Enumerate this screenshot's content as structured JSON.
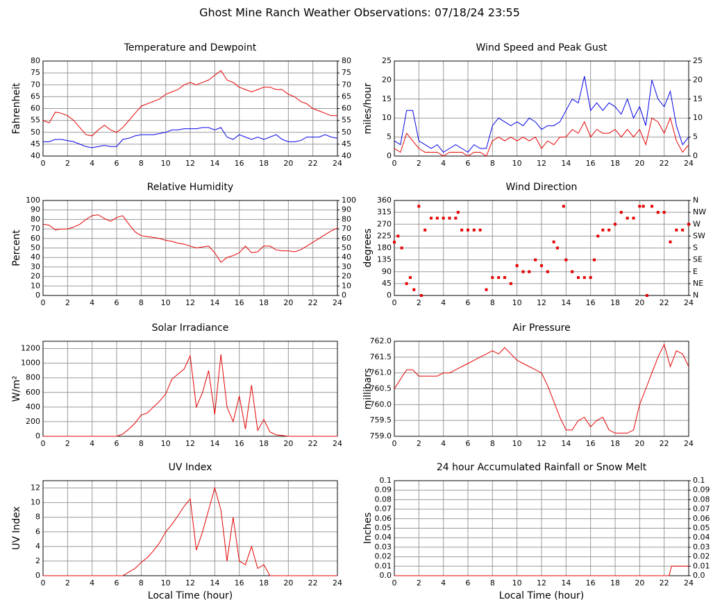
{
  "title": "Ghost Mine Ranch Weather Observations: 07/18/24 23:55",
  "chart_data": [
    {
      "type": "line",
      "title": "Temperature and Dewpoint",
      "ylabel": "Fahrenheit",
      "x": [
        0,
        0.5,
        1,
        1.5,
        2,
        2.5,
        3,
        3.5,
        4,
        4.5,
        5,
        5.5,
        6,
        6.5,
        7,
        7.5,
        8,
        8.5,
        9,
        9.5,
        10,
        10.5,
        11,
        11.5,
        12,
        12.5,
        13,
        13.5,
        14,
        14.5,
        15,
        15.5,
        16,
        16.5,
        17,
        17.5,
        18,
        18.5,
        19,
        19.5,
        20,
        20.5,
        21,
        21.5,
        22,
        22.5,
        23,
        23.5,
        24
      ],
      "series": [
        {
          "color": "#e60000",
          "values": [
            55,
            54,
            58.5,
            58,
            57,
            55,
            52,
            49,
            48.5,
            51,
            53,
            51,
            50,
            52,
            55,
            58,
            61,
            62,
            63,
            64,
            66,
            67,
            68,
            70,
            71,
            70,
            71,
            72,
            74,
            76,
            72,
            71,
            69,
            68,
            67,
            68,
            69,
            69,
            68,
            68,
            66,
            65,
            63,
            62,
            60,
            59,
            58,
            57,
            57
          ]
        },
        {
          "color": "#0000e6",
          "values": [
            46,
            46,
            47,
            47,
            46.5,
            46,
            45,
            44,
            43.5,
            44,
            44.5,
            44,
            44,
            47,
            47.5,
            48.5,
            49,
            49,
            49,
            49.5,
            50,
            51,
            51,
            51.5,
            51.5,
            51.5,
            52,
            52,
            51,
            52,
            48,
            47,
            49,
            48,
            47,
            48,
            47,
            48,
            49,
            47,
            46,
            46,
            46.5,
            48,
            48,
            48,
            49,
            48,
            47.5
          ]
        }
      ],
      "xlim": [
        0,
        24
      ],
      "xticks": [
        0,
        2,
        4,
        6,
        8,
        10,
        12,
        14,
        16,
        18,
        20,
        22,
        24
      ],
      "ylim": [
        40,
        80
      ],
      "yticks": [
        40,
        45,
        50,
        55,
        60,
        65,
        70,
        75,
        80
      ],
      "y2lim": [
        40,
        80
      ],
      "y2ticks": [
        40,
        45,
        50,
        55,
        60,
        65,
        70,
        75,
        80
      ],
      "grid": true
    },
    {
      "type": "line",
      "title": "Wind Speed and Peak Gust",
      "ylabel": "miles/hour",
      "x": [
        0,
        0.5,
        1,
        1.5,
        2,
        2.5,
        3,
        3.5,
        4,
        4.5,
        5,
        5.5,
        6,
        6.5,
        7,
        7.5,
        8,
        8.5,
        9,
        9.5,
        10,
        10.5,
        11,
        11.5,
        12,
        12.5,
        13,
        13.5,
        14,
        14.5,
        15,
        15.5,
        16,
        16.5,
        17,
        17.5,
        18,
        18.5,
        19,
        19.5,
        20,
        20.5,
        21,
        21.5,
        22,
        22.5,
        23,
        23.5,
        24
      ],
      "series": [
        {
          "color": "#0000e6",
          "values": [
            4,
            3,
            12,
            12,
            4,
            3,
            2,
            3,
            1,
            2,
            3,
            2,
            1,
            3,
            2,
            2,
            8,
            10,
            9,
            8,
            9,
            8,
            10,
            9,
            7,
            8,
            8,
            9,
            12,
            15,
            14,
            21,
            12,
            14,
            12,
            14,
            13,
            11,
            15,
            10,
            13,
            8,
            20,
            15,
            13,
            17,
            8,
            3,
            5
          ]
        },
        {
          "color": "#e60000",
          "values": [
            2,
            1,
            6,
            4,
            2,
            1,
            1,
            1,
            0,
            1,
            1,
            1,
            0,
            1,
            1,
            0,
            4,
            5,
            4,
            5,
            4,
            5,
            4,
            5,
            2,
            4,
            3,
            5,
            5,
            7,
            6,
            9,
            5,
            7,
            6,
            6,
            7,
            5,
            7,
            5,
            7,
            3,
            10,
            9,
            6,
            10,
            4,
            1,
            3
          ]
        }
      ],
      "xlim": [
        0,
        24
      ],
      "xticks": [
        0,
        2,
        4,
        6,
        8,
        10,
        12,
        14,
        16,
        18,
        20,
        22,
        24
      ],
      "ylim": [
        0,
        25
      ],
      "yticks": [
        0,
        5,
        10,
        15,
        20,
        25
      ],
      "y2lim": [
        0,
        25
      ],
      "y2ticks": [
        0,
        5,
        10,
        15,
        20,
        25
      ],
      "grid": true
    },
    {
      "type": "line",
      "title": "Relative Humidity",
      "ylabel": "Percent",
      "x": [
        0,
        0.5,
        1,
        1.5,
        2,
        2.5,
        3,
        3.5,
        4,
        4.5,
        5,
        5.5,
        6,
        6.5,
        7,
        7.5,
        8,
        8.5,
        9,
        9.5,
        10,
        10.5,
        11,
        11.5,
        12,
        12.5,
        13,
        13.5,
        14,
        14.5,
        15,
        15.5,
        16,
        16.5,
        17,
        17.5,
        18,
        18.5,
        19,
        19.5,
        20,
        20.5,
        21,
        21.5,
        22,
        22.5,
        23,
        23.5,
        24
      ],
      "series": [
        {
          "color": "#e60000",
          "values": [
            75,
            74,
            69,
            70,
            70,
            72,
            75,
            80,
            84,
            85,
            81,
            78,
            82,
            84,
            75,
            67,
            63,
            62,
            61,
            60,
            58,
            57,
            55,
            54,
            52,
            50,
            51,
            52,
            45,
            35,
            40,
            42,
            45,
            52,
            45,
            46,
            52,
            52,
            48,
            47,
            47,
            46,
            48,
            52,
            56,
            60,
            64,
            68,
            71
          ]
        }
      ],
      "xlim": [
        0,
        24
      ],
      "xticks": [
        0,
        2,
        4,
        6,
        8,
        10,
        12,
        14,
        16,
        18,
        20,
        22,
        24
      ],
      "ylim": [
        0,
        100
      ],
      "yticks": [
        0,
        10,
        20,
        30,
        40,
        50,
        60,
        70,
        80,
        90,
        100
      ],
      "y2lim": [
        0,
        100
      ],
      "y2ticks": [
        0,
        10,
        20,
        30,
        40,
        50,
        60,
        70,
        80,
        90,
        100
      ],
      "grid": true
    },
    {
      "type": "scatter",
      "title": "Wind Direction",
      "ylabel": "degrees",
      "x": [
        0,
        0.3,
        0.6,
        1,
        1.3,
        1.6,
        2,
        2.2,
        2.5,
        3,
        3.5,
        4,
        4.5,
        5,
        5.2,
        5.5,
        6,
        6.5,
        7,
        7.5,
        8,
        8.5,
        9,
        9.5,
        10,
        10.5,
        11,
        11.5,
        12,
        12.5,
        13,
        13.3,
        13.8,
        14,
        14.5,
        15,
        15.5,
        16,
        16.3,
        16.6,
        17,
        17.5,
        18,
        18.5,
        19,
        19.5,
        20,
        20.3,
        20.6,
        21,
        21.5,
        22,
        22.5,
        23,
        23.5,
        24
      ],
      "series": [
        {
          "color": "#e60000",
          "values": [
            202,
            225,
            180,
            45,
            68,
            22,
            338,
            0,
            248,
            293,
            293,
            293,
            293,
            293,
            315,
            248,
            248,
            248,
            248,
            22,
            68,
            68,
            68,
            45,
            113,
            90,
            90,
            135,
            113,
            90,
            203,
            180,
            338,
            135,
            90,
            68,
            68,
            68,
            135,
            225,
            248,
            248,
            270,
            315,
            293,
            293,
            338,
            338,
            0,
            338,
            315,
            315,
            203,
            248,
            248,
            270
          ]
        }
      ],
      "xlim": [
        0,
        24
      ],
      "xticks": [
        0,
        2,
        4,
        6,
        8,
        10,
        12,
        14,
        16,
        18,
        20,
        22,
        24
      ],
      "ylim": [
        0,
        360
      ],
      "yticks": [
        0,
        45,
        90,
        135,
        180,
        225,
        270,
        315,
        360
      ],
      "y2lim": [
        0,
        360
      ],
      "y2ticks": [
        {
          "value": 0,
          "label": "N"
        },
        {
          "value": 45,
          "label": "NE"
        },
        {
          "value": 90,
          "label": "E"
        },
        {
          "value": 135,
          "label": "SE"
        },
        {
          "value": 180,
          "label": "S"
        },
        {
          "value": 225,
          "label": "SW"
        },
        {
          "value": 270,
          "label": "W"
        },
        {
          "value": 315,
          "label": "NW"
        },
        {
          "value": 360,
          "label": "N"
        }
      ],
      "grid": true
    },
    {
      "type": "line",
      "title": "Solar Irradiance",
      "ylabel": "W/m²",
      "x": [
        0,
        0.5,
        1,
        1.5,
        2,
        2.5,
        3,
        3.5,
        4,
        4.5,
        5,
        5.5,
        6,
        6.5,
        7,
        7.5,
        8,
        8.5,
        9,
        9.5,
        10,
        10.5,
        11,
        11.5,
        12,
        12.5,
        13,
        13.5,
        14,
        14.5,
        15,
        15.5,
        16,
        16.5,
        17,
        17.5,
        18,
        18.5,
        19,
        19.5,
        20,
        20.5,
        21,
        21.5,
        22,
        22.5,
        23,
        23.5,
        24
      ],
      "series": [
        {
          "color": "#e60000",
          "values": [
            0,
            0,
            0,
            0,
            0,
            0,
            0,
            0,
            0,
            0,
            0,
            0,
            0,
            30,
            100,
            180,
            290,
            320,
            400,
            480,
            580,
            780,
            850,
            920,
            1100,
            400,
            600,
            900,
            300,
            1120,
            400,
            200,
            550,
            100,
            700,
            80,
            230,
            60,
            20,
            10,
            0,
            0,
            0,
            0,
            0,
            0,
            0,
            0,
            0
          ]
        }
      ],
      "xlim": [
        0,
        24
      ],
      "xticks": [
        0,
        2,
        4,
        6,
        8,
        10,
        12,
        14,
        16,
        18,
        20,
        22,
        24
      ],
      "ylim": [
        0,
        1300
      ],
      "yticks": [
        0,
        200,
        400,
        600,
        800,
        1000,
        1200
      ],
      "grid": true
    },
    {
      "type": "line",
      "title": "Air Pressure",
      "ylabel": "millibars",
      "x": [
        0,
        0.5,
        1,
        1.5,
        2,
        2.5,
        3,
        3.5,
        4,
        4.5,
        5,
        5.5,
        6,
        6.5,
        7,
        7.5,
        8,
        8.5,
        9,
        9.5,
        10,
        10.5,
        11,
        11.5,
        12,
        12.5,
        13,
        13.5,
        14,
        14.5,
        15,
        15.5,
        16,
        16.5,
        17,
        17.5,
        18,
        18.5,
        19,
        19.5,
        20,
        20.5,
        21,
        21.5,
        22,
        22.5,
        23,
        23.5,
        24
      ],
      "series": [
        {
          "color": "#e60000",
          "values": [
            760.5,
            760.8,
            761.1,
            761.1,
            760.9,
            760.9,
            760.9,
            760.9,
            761.0,
            761.0,
            761.1,
            761.2,
            761.3,
            761.4,
            761.5,
            761.6,
            761.7,
            761.6,
            761.8,
            761.6,
            761.4,
            761.3,
            761.2,
            761.1,
            761.0,
            760.6,
            760.1,
            759.6,
            759.2,
            759.2,
            759.5,
            759.6,
            759.3,
            759.5,
            759.6,
            759.2,
            759.1,
            759.1,
            759.1,
            759.2,
            760.0,
            760.5,
            761.0,
            761.5,
            761.9,
            761.2,
            761.7,
            761.6,
            761.2
          ]
        }
      ],
      "xlim": [
        0,
        24
      ],
      "xticks": [
        0,
        2,
        4,
        6,
        8,
        10,
        12,
        14,
        16,
        18,
        20,
        22,
        24
      ],
      "ylim": [
        759,
        762
      ],
      "yticks": [
        {
          "value": 759,
          "label": "759.0"
        },
        {
          "value": 759.5,
          "label": "759.5"
        },
        {
          "value": 760,
          "label": "760.0"
        },
        {
          "value": 760.5,
          "label": "760.5"
        },
        {
          "value": 761,
          "label": "761.0"
        },
        {
          "value": 761.5,
          "label": "761.5"
        },
        {
          "value": 762,
          "label": "762.0"
        }
      ],
      "grid": true
    },
    {
      "type": "line",
      "title": "UV Index",
      "ylabel": "UV Index",
      "xlabel": "Local Time (hour)",
      "x": [
        0,
        0.5,
        1,
        1.5,
        2,
        2.5,
        3,
        3.5,
        4,
        4.5,
        5,
        5.5,
        6,
        6.5,
        7,
        7.5,
        8,
        8.5,
        9,
        9.5,
        10,
        10.5,
        11,
        11.5,
        12,
        12.5,
        13,
        13.5,
        14,
        14.5,
        15,
        15.5,
        16,
        16.5,
        17,
        17.5,
        18,
        18.5,
        19,
        19.5,
        20,
        20.5,
        21,
        21.5,
        22,
        22.5,
        23,
        23.5,
        24
      ],
      "series": [
        {
          "color": "#e60000",
          "values": [
            0,
            0,
            0,
            0,
            0,
            0,
            0,
            0,
            0,
            0,
            0,
            0,
            0,
            0,
            0.5,
            1,
            1.8,
            2.5,
            3.4,
            4.5,
            6,
            7,
            8.2,
            9.5,
            10.5,
            3.5,
            6,
            9,
            12,
            9,
            2,
            8,
            2,
            1.5,
            4,
            1,
            1.5,
            0,
            0,
            0,
            0,
            0,
            0,
            0,
            0,
            0,
            0,
            0,
            0
          ]
        }
      ],
      "xlim": [
        0,
        24
      ],
      "xticks": [
        0,
        2,
        4,
        6,
        8,
        10,
        12,
        14,
        16,
        18,
        20,
        22,
        24
      ],
      "ylim": [
        0,
        13
      ],
      "yticks": [
        0,
        2,
        4,
        6,
        8,
        10,
        12
      ],
      "grid": true
    },
    {
      "type": "line",
      "title": "24 hour Accumulated Rainfall or Snow Melt",
      "ylabel": "Inches",
      "xlabel": "Local Time (hour)",
      "x": [
        0,
        22.4,
        22.6,
        24
      ],
      "series": [
        {
          "color": "#e60000",
          "values": [
            0,
            0,
            0.01,
            0.01
          ]
        }
      ],
      "xlim": [
        0,
        24
      ],
      "xticks": [
        0,
        2,
        4,
        6,
        8,
        10,
        12,
        14,
        16,
        18,
        20,
        22,
        24
      ],
      "ylim": [
        0,
        0.1
      ],
      "yticks": [
        {
          "value": 0,
          "label": "0.0"
        },
        0.01,
        0.02,
        0.03,
        0.04,
        0.05,
        0.06,
        0.07,
        0.08,
        0.09,
        0.1
      ],
      "y2lim": [
        0,
        0.1
      ],
      "y2ticks": [
        {
          "value": 0,
          "label": "0.0"
        },
        0.01,
        0.02,
        0.03,
        0.04,
        0.05,
        0.06,
        0.07,
        0.08,
        0.09,
        0.1
      ],
      "grid": true
    }
  ]
}
